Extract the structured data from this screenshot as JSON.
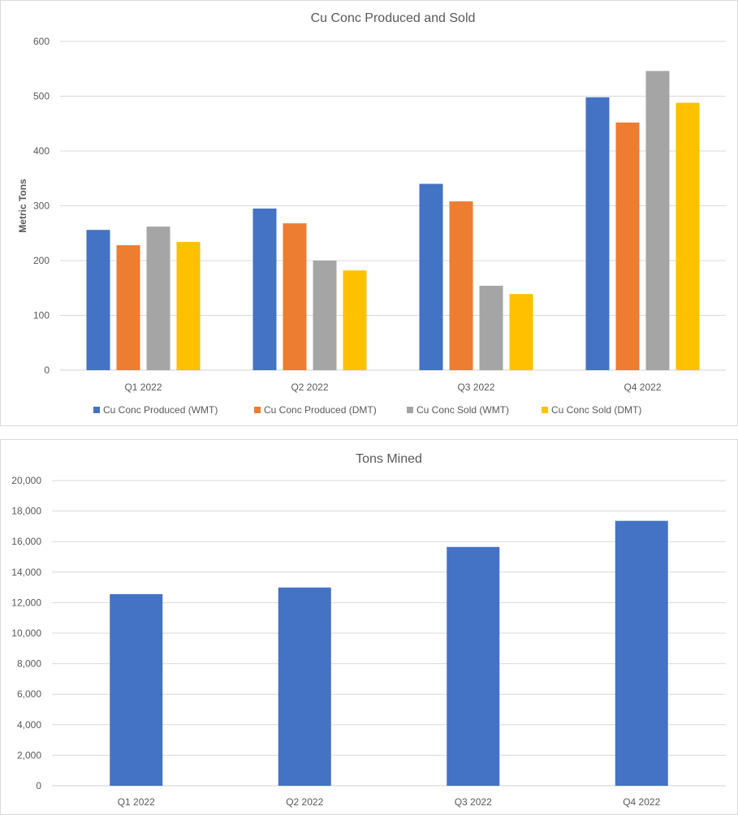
{
  "chart_data": [
    {
      "type": "bar",
      "title": "Cu Conc Produced and Sold",
      "xlabel": "",
      "ylabel": "Metric Tons",
      "categories": [
        "Q1 2022",
        "Q2 2022",
        "Q3 2022",
        "Q4 2022"
      ],
      "ylim": [
        0,
        600
      ],
      "yticks": [
        0,
        100,
        200,
        300,
        400,
        500,
        600
      ],
      "ytick_labels": [
        "0",
        "100",
        "200",
        "300",
        "400",
        "500",
        "600"
      ],
      "grid": true,
      "legend": "bottom",
      "series": [
        {
          "name": "Cu Conc Produced (WMT)",
          "color": "#4472C4",
          "values": [
            256,
            295,
            340,
            498
          ]
        },
        {
          "name": "Cu Conc Produced (DMT)",
          "color": "#ED7D31",
          "values": [
            228,
            268,
            308,
            452
          ]
        },
        {
          "name": "Cu Conc Sold (WMT)",
          "color": "#A5A5A5",
          "values": [
            262,
            200,
            154,
            546
          ]
        },
        {
          "name": "Cu Conc Sold (DMT)",
          "color": "#FFC000",
          "values": [
            234,
            182,
            139,
            488
          ]
        }
      ]
    },
    {
      "type": "bar",
      "title": "Tons Mined",
      "xlabel": "",
      "ylabel": "",
      "categories": [
        "Q1 2022",
        "Q2 2022",
        "Q3 2022",
        "Q4 2022"
      ],
      "ylim": [
        0,
        20000
      ],
      "yticks": [
        0,
        2000,
        4000,
        6000,
        8000,
        10000,
        12000,
        14000,
        16000,
        18000,
        20000
      ],
      "ytick_labels": [
        "0",
        "2,000",
        "4,000",
        "6,000",
        "8,000",
        "10,000",
        "12,000",
        "14,000",
        "16,000",
        "18,000",
        "20,000"
      ],
      "grid": true,
      "legend": "none",
      "series": [
        {
          "color": "#4472C4",
          "values": [
            12560,
            12990,
            15650,
            17360
          ]
        }
      ]
    }
  ]
}
